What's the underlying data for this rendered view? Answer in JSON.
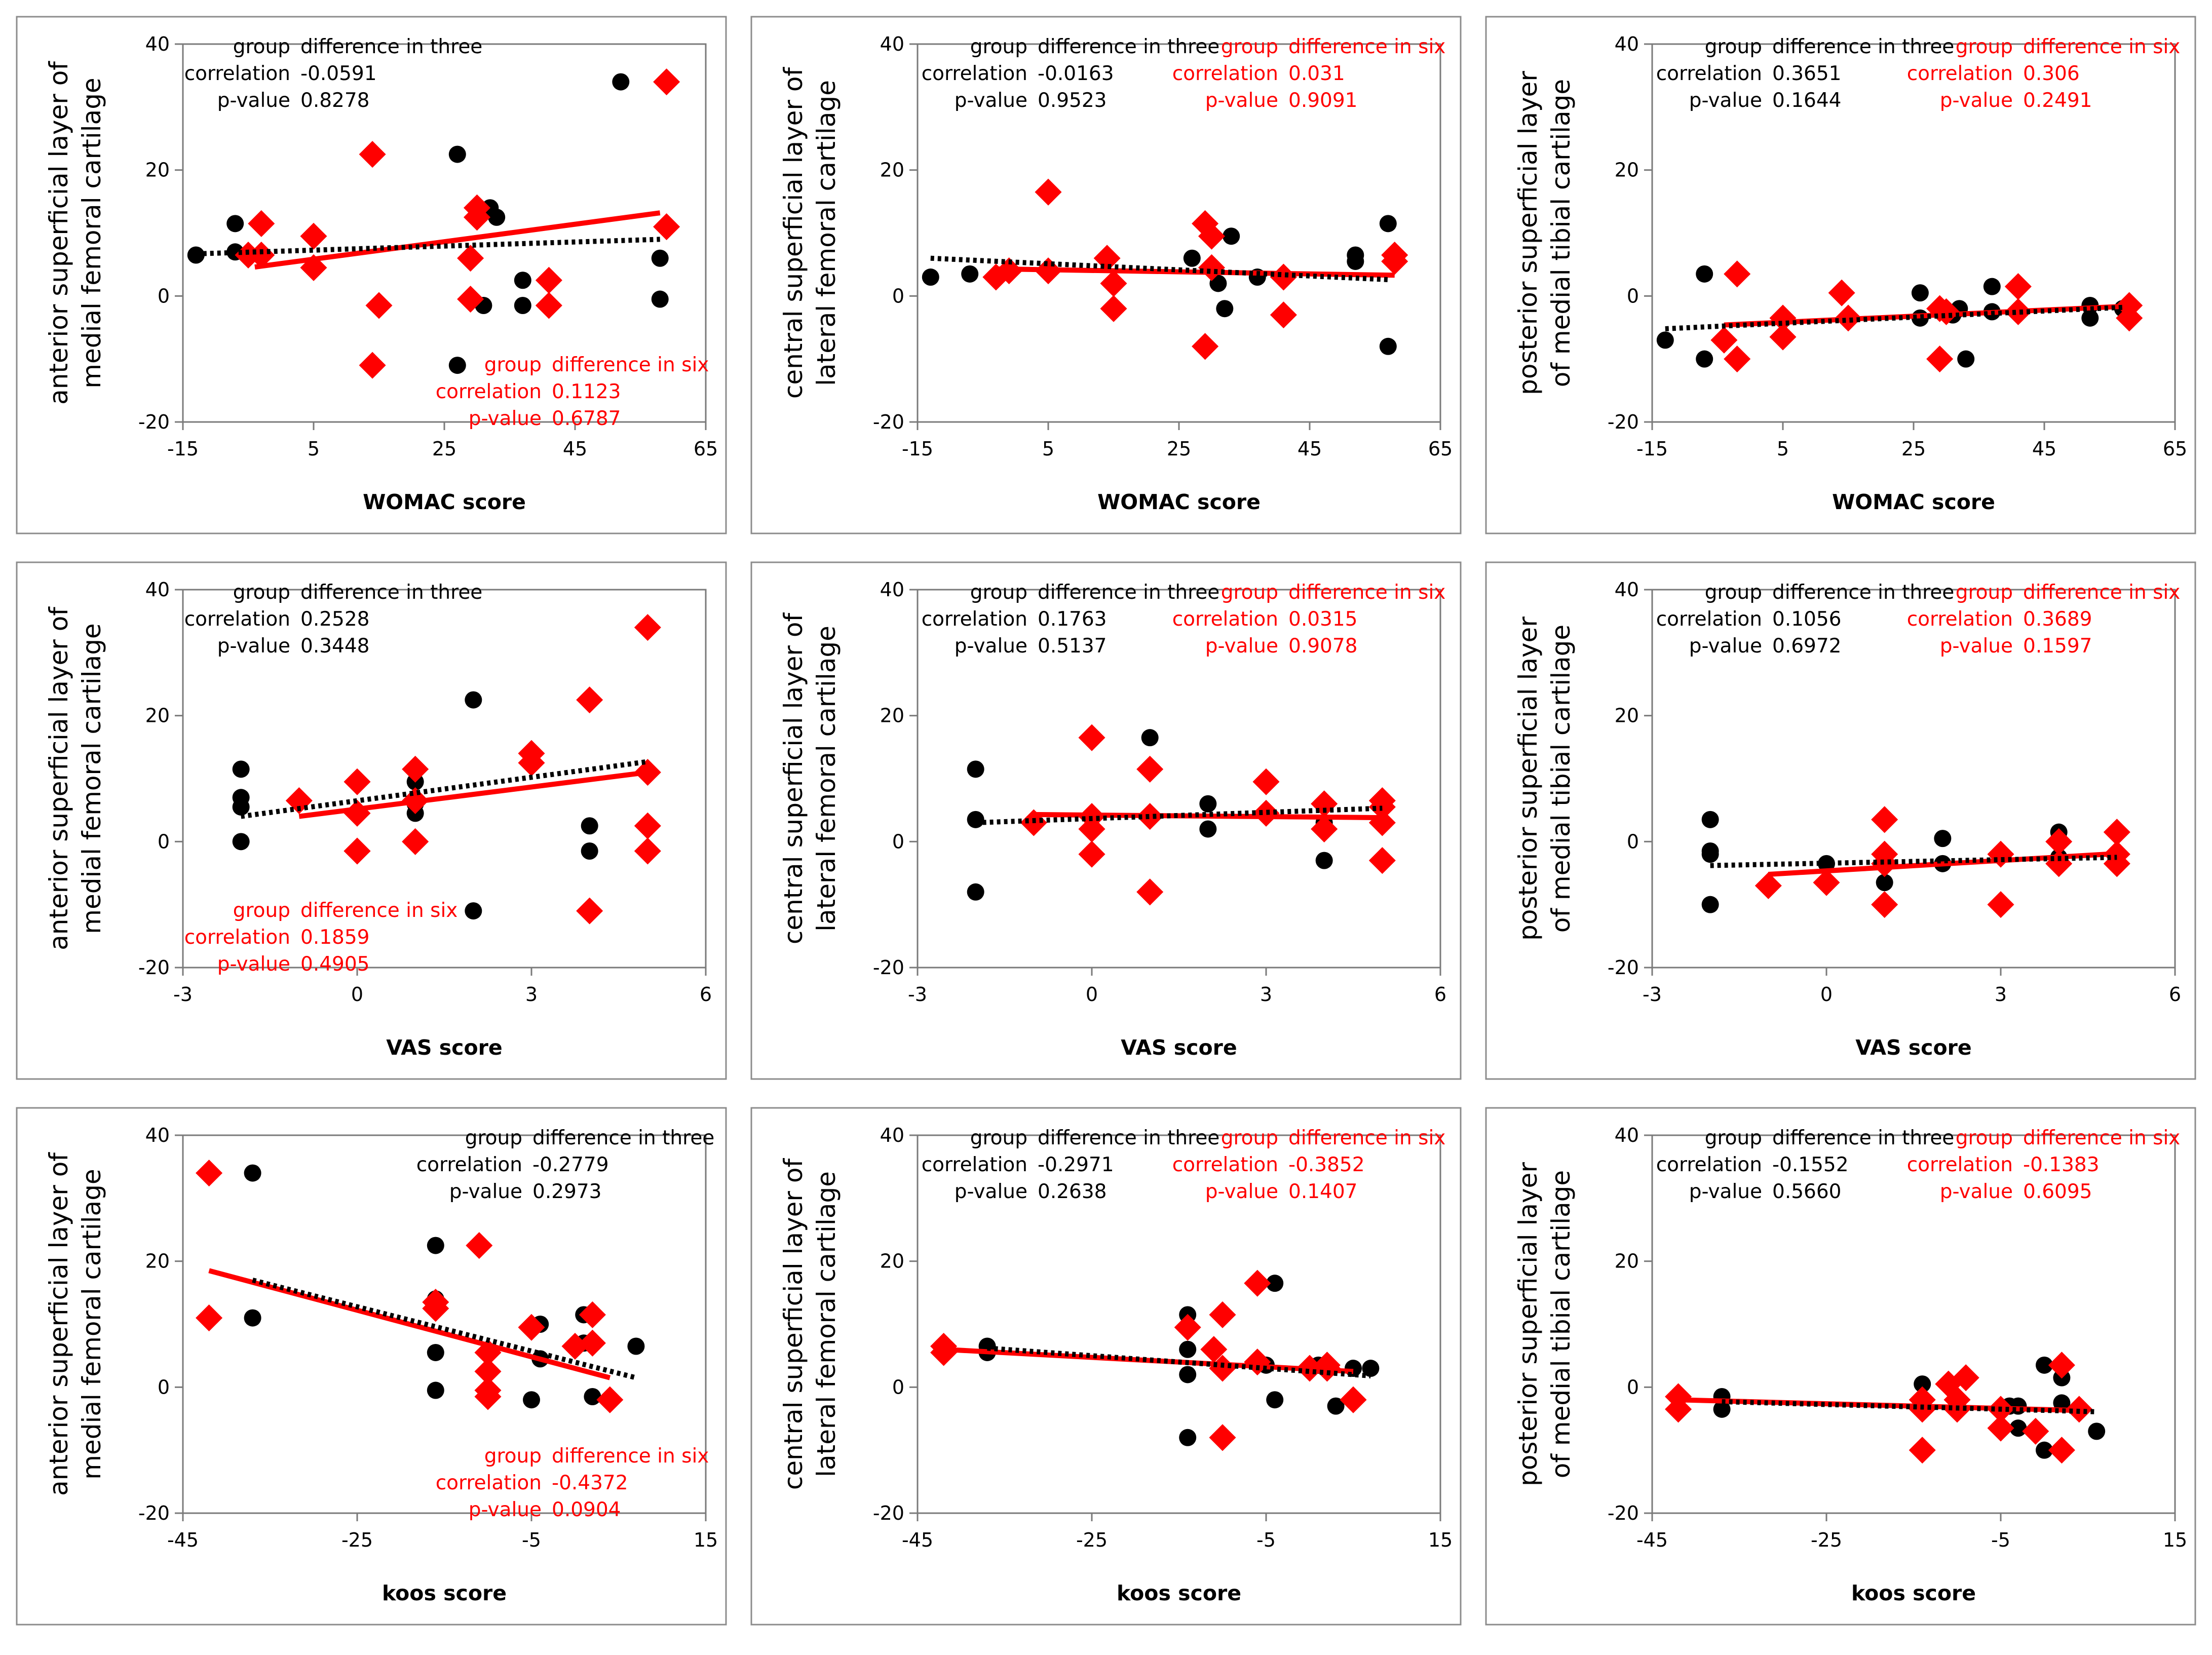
{
  "colors": {
    "three": "#000000",
    "six": "#ff0000",
    "frame": "#8c8c8c",
    "axis": "#7a7a7a"
  },
  "chart_data": [
    {
      "type": "scatter",
      "xlabel": "WOMAC score",
      "ylabel": [
        "anterior superficial layer of",
        "medial femoral cartilage"
      ],
      "xticks": [
        "-15",
        "5",
        "25",
        "45",
        "65"
      ],
      "xlim": [
        -15,
        65
      ],
      "yticks": [
        "40",
        "20",
        "0",
        "-20"
      ],
      "ylim": [
        -20,
        40
      ],
      "legend_three": {
        "group": "group",
        "name": "difference in three",
        "corr_label": "correlation",
        "corr": "-0.0591",
        "p_label": "p-value",
        "p": "0.8278"
      },
      "legend_six": {
        "group": "group",
        "name": "difference in six",
        "corr_label": "correlation",
        "corr": "0.1123",
        "p_label": "p-value",
        "p": "0.6787"
      },
      "three": {
        "x": [
          -13,
          -7,
          -7,
          5,
          5,
          27,
          31,
          32,
          33,
          37,
          37,
          52,
          58,
          58,
          27
        ],
        "y": [
          6.5,
          11.5,
          7,
          9.5,
          4.5,
          22.5,
          -1.5,
          14,
          12.5,
          2.5,
          -1.5,
          34,
          6,
          -0.5,
          -11
        ]
      },
      "six": {
        "x": [
          -5,
          -3,
          -3,
          5,
          5,
          14,
          15,
          14,
          29,
          30,
          30,
          29,
          41,
          41,
          59,
          59
        ],
        "y": [
          6.5,
          6.5,
          11.5,
          9.5,
          4.5,
          22.5,
          -1.5,
          -11,
          6,
          14,
          12.5,
          -0.5,
          2.5,
          -1.5,
          34,
          11
        ]
      },
      "fit_three": [
        [
          -13,
          6.7
        ],
        [
          58,
          9
        ]
      ],
      "fit_six": [
        [
          -4,
          4.6
        ],
        [
          58,
          13.2
        ]
      ]
    },
    {
      "type": "scatter",
      "xlabel": "WOMAC score",
      "ylabel": [
        "central superficial layer of",
        "lateral femoral cartilage"
      ],
      "xticks": [
        "-15",
        "5",
        "25",
        "45",
        "65"
      ],
      "xlim": [
        -15,
        65
      ],
      "yticks": [
        "40",
        "20",
        "0",
        "-20"
      ],
      "ylim": [
        -20,
        40
      ],
      "legend_three": {
        "group": "group",
        "name": "difference in three",
        "corr_label": "correlation",
        "corr": "-0.0163",
        "p_label": "p-value",
        "p": "0.9523"
      },
      "legend_six": {
        "group": "group",
        "name": "difference in six",
        "corr_label": "correlation",
        "corr": "0.031",
        "p_label": "p-value",
        "p": "0.9091"
      },
      "three": {
        "x": [
          -13,
          -7,
          5,
          27,
          31,
          32,
          33,
          37,
          52,
          52,
          57,
          57
        ],
        "y": [
          3,
          3.5,
          16.5,
          6,
          2,
          -2,
          9.5,
          3,
          5.5,
          6.5,
          11.5,
          -8
        ]
      },
      "six": {
        "x": [
          -3,
          -1,
          5,
          5,
          14,
          15,
          15,
          29,
          30,
          30,
          29,
          41,
          41,
          58,
          58
        ],
        "y": [
          3,
          4,
          16.5,
          4,
          6,
          2,
          -2,
          11.5,
          9.5,
          4.5,
          -8,
          3,
          -3,
          6.5,
          5.5
        ]
      },
      "fit_three": [
        [
          -13,
          6
        ],
        [
          57,
          2.6
        ]
      ],
      "fit_six": [
        [
          -3,
          4.3
        ],
        [
          58,
          3.3
        ]
      ]
    },
    {
      "type": "scatter",
      "xlabel": "WOMAC score",
      "ylabel": [
        "posterior superficial layer",
        "of medial tibial cartilage"
      ],
      "xticks": [
        "-15",
        "5",
        "25",
        "45",
        "65"
      ],
      "xlim": [
        -15,
        65
      ],
      "yticks": [
        "40",
        "20",
        "0",
        "-20"
      ],
      "ylim": [
        -20,
        40
      ],
      "legend_three": {
        "group": "group",
        "name": "difference in three",
        "corr_label": "correlation",
        "corr": "0.3651",
        "p_label": "p-value",
        "p": "0.1644"
      },
      "legend_six": {
        "group": "group",
        "name": "difference in six",
        "corr_label": "correlation",
        "corr": "0.306",
        "p_label": "p-value",
        "p": "0.2491"
      },
      "three": {
        "x": [
          -13,
          -7,
          -7,
          5,
          5,
          26,
          26,
          29,
          31,
          32,
          33,
          37,
          37,
          52,
          52,
          57
        ],
        "y": [
          -7,
          3.5,
          -10,
          -3.5,
          -6.5,
          0.5,
          -3.5,
          -2,
          -3,
          -2,
          -10,
          1.5,
          -2.5,
          -1.5,
          -3.5,
          -2
        ]
      },
      "six": {
        "x": [
          -4,
          -2,
          -2,
          5,
          5,
          14,
          15,
          29,
          29,
          30,
          41,
          41,
          58,
          58
        ],
        "y": [
          -7,
          3.5,
          -10,
          -3.5,
          -6.5,
          0.5,
          -3.5,
          -2,
          -10,
          -2.5,
          1.5,
          -2.5,
          -1.5,
          -3.5
        ]
      },
      "fit_three": [
        [
          -13,
          -5.2
        ],
        [
          57,
          -1.8
        ]
      ],
      "fit_six": [
        [
          -4,
          -4.6
        ],
        [
          58,
          -1.6
        ]
      ]
    },
    {
      "type": "scatter",
      "xlabel": "VAS score",
      "ylabel": [
        "anterior superficial layer of",
        "medial femoral cartilage"
      ],
      "xticks": [
        "-3",
        "0",
        "3",
        "6"
      ],
      "xlim": [
        -3,
        6
      ],
      "yticks": [
        "40",
        "20",
        "0",
        "-20"
      ],
      "ylim": [
        -20,
        40
      ],
      "legend_three": {
        "group": "group",
        "name": "difference in three",
        "corr_label": "correlation",
        "corr": "0.2528",
        "p_label": "p-value",
        "p": "0.3448"
      },
      "legend_six": {
        "group": "group",
        "name": "difference in six",
        "corr_label": "correlation",
        "corr": "0.1859",
        "p_label": "p-value",
        "p": "0.4905"
      },
      "three": {
        "x": [
          -2,
          -2,
          -2,
          -2,
          1,
          1,
          1,
          2,
          2,
          3,
          3,
          4,
          4,
          5
        ],
        "y": [
          11.5,
          7,
          5.5,
          0,
          9.5,
          6,
          4.5,
          22.5,
          -11,
          14,
          13,
          2.5,
          -1.5,
          34
        ]
      },
      "six": {
        "x": [
          -1,
          0,
          0,
          0,
          0,
          1,
          1,
          1,
          3,
          3,
          4,
          4,
          5,
          5,
          5,
          5
        ],
        "y": [
          6.5,
          9.5,
          4.5,
          -1.5,
          -1.5,
          11.5,
          6.5,
          0,
          14,
          12.5,
          22.5,
          -11,
          34,
          11,
          2.5,
          -1.5
        ]
      },
      "fit_three": [
        [
          -2,
          4
        ],
        [
          5,
          12.7
        ]
      ],
      "fit_six": [
        [
          -1,
          4
        ],
        [
          5,
          11
        ]
      ]
    },
    {
      "type": "scatter",
      "xlabel": "VAS score",
      "ylabel": [
        "central superficial layer of",
        "lateral femoral cartilage"
      ],
      "xticks": [
        "-3",
        "0",
        "3",
        "6"
      ],
      "xlim": [
        -3,
        6
      ],
      "yticks": [
        "40",
        "20",
        "0",
        "-20"
      ],
      "ylim": [
        -20,
        40
      ],
      "legend_three": {
        "group": "group",
        "name": "difference in three",
        "corr_label": "correlation",
        "corr": "0.1763",
        "p_label": "p-value",
        "p": "0.5137"
      },
      "legend_six": {
        "group": "group",
        "name": "difference in six",
        "corr_label": "correlation",
        "corr": "0.0315",
        "p_label": "p-value",
        "p": "0.9078"
      },
      "three": {
        "x": [
          -2,
          -2,
          -2,
          0,
          1,
          1,
          2,
          2,
          3,
          3,
          4,
          4,
          5
        ],
        "y": [
          11.5,
          3.5,
          -8,
          2,
          16.5,
          4,
          6,
          2,
          9.5,
          4.5,
          3,
          -3,
          6.5
        ]
      },
      "six": {
        "x": [
          -1,
          0,
          0,
          0,
          0,
          1,
          1,
          1,
          3,
          3,
          4,
          4,
          5,
          5,
          5,
          5
        ],
        "y": [
          3,
          16.5,
          4,
          2,
          -2,
          11.5,
          4,
          -8,
          9.5,
          4.5,
          6,
          2,
          6.5,
          5.5,
          3,
          -3
        ]
      },
      "fit_three": [
        [
          -2,
          3
        ],
        [
          5,
          5.3
        ]
      ],
      "fit_six": [
        [
          -1,
          4.3
        ],
        [
          5,
          3.8
        ]
      ]
    },
    {
      "type": "scatter",
      "xlabel": "VAS score",
      "ylabel": [
        "posterior superficial layer",
        "of medial tibial cartilage"
      ],
      "xticks": [
        "-3",
        "0",
        "3",
        "6"
      ],
      "xlim": [
        -3,
        6
      ],
      "yticks": [
        "40",
        "20",
        "0",
        "-20"
      ],
      "ylim": [
        -20,
        40
      ],
      "legend_three": {
        "group": "group",
        "name": "difference in three",
        "corr_label": "correlation",
        "corr": "0.1056",
        "p_label": "p-value",
        "p": "0.6972"
      },
      "legend_six": {
        "group": "group",
        "name": "difference in six",
        "corr_label": "correlation",
        "corr": "0.3689",
        "p_label": "p-value",
        "p": "0.1597"
      },
      "three": {
        "x": [
          -2,
          -2,
          -2,
          -2,
          0,
          1,
          1,
          2,
          2,
          3,
          4,
          4,
          5
        ],
        "y": [
          3.5,
          -1.5,
          -2,
          -10,
          -3.5,
          -6.5,
          -2.5,
          0.5,
          -3.5,
          -2,
          1.5,
          -2.5,
          -2.5
        ]
      },
      "six": {
        "x": [
          -1,
          0,
          1,
          1,
          1,
          1,
          3,
          3,
          4,
          4,
          5,
          5,
          5
        ],
        "y": [
          -7,
          -6.5,
          3.5,
          -2,
          -3.5,
          -10,
          -2,
          -10,
          0,
          -3.5,
          1.5,
          -2,
          -3.5
        ]
      },
      "fit_three": [
        [
          -2,
          -3.8
        ],
        [
          5,
          -2.5
        ]
      ],
      "fit_six": [
        [
          -1,
          -5.2
        ],
        [
          5,
          -1.9
        ]
      ]
    },
    {
      "type": "scatter",
      "xlabel": "koos score",
      "ylabel": [
        "anterior superficial layer of",
        "medial femoral cartilage"
      ],
      "xticks": [
        "-45",
        "-25",
        "-5",
        "15"
      ],
      "xlim": [
        -45,
        15
      ],
      "yticks": [
        "40",
        "20",
        "0",
        "-20"
      ],
      "ylim": [
        -20,
        40
      ],
      "legend_three": {
        "group": "group",
        "name": "difference in three",
        "corr_label": "correlation",
        "corr": "-0.2779",
        "p_label": "p-value",
        "p": "0.2973"
      },
      "legend_six": {
        "group": "group",
        "name": "difference in six",
        "corr_label": "correlation",
        "corr": "-0.4372",
        "p_label": "p-value",
        "p": "0.0904"
      },
      "three": {
        "x": [
          -37,
          -37,
          -16,
          -16,
          -16,
          -16,
          -4,
          -4,
          -5,
          1,
          1,
          2,
          7
        ],
        "y": [
          34,
          11,
          22.5,
          14,
          5.5,
          -0.5,
          10,
          4.5,
          -2,
          11.5,
          7,
          -1.5,
          6.5
        ]
      },
      "six": {
        "x": [
          -42,
          -42,
          -16,
          -16,
          -11,
          -10,
          -10,
          -10,
          -10,
          -5,
          0,
          2,
          2,
          4
        ],
        "y": [
          34,
          11,
          13.5,
          12.5,
          22.5,
          5.5,
          2.5,
          -0.5,
          -1.5,
          9.5,
          6.5,
          11.5,
          7,
          -2
        ]
      },
      "fit_three": [
        [
          -37,
          17
        ],
        [
          7,
          1.5
        ]
      ],
      "fit_six": [
        [
          -42,
          18.5
        ],
        [
          4,
          1.5
        ]
      ]
    },
    {
      "type": "scatter",
      "xlabel": "koos score",
      "ylabel": [
        "central superficial layer of",
        "lateral femoral cartilage"
      ],
      "xticks": [
        "-45",
        "-25",
        "-5",
        "15"
      ],
      "xlim": [
        -45,
        15
      ],
      "yticks": [
        "40",
        "20",
        "0",
        "-20"
      ],
      "ylim": [
        -20,
        40
      ],
      "legend_three": {
        "group": "group",
        "name": "difference in three",
        "corr_label": "correlation",
        "corr": "-0.2971",
        "p_label": "p-value",
        "p": "0.2638"
      },
      "legend_six": {
        "group": "group",
        "name": "difference in six",
        "corr_label": "correlation",
        "corr": "-0.3852",
        "p_label": "p-value",
        "p": "0.1407"
      },
      "three": {
        "x": [
          -37,
          -37,
          -14,
          -14,
          -14,
          -14,
          -5,
          -4,
          -4,
          1,
          3,
          5,
          7
        ],
        "y": [
          6.5,
          5.5,
          11.5,
          6,
          2,
          -8,
          3.5,
          16.5,
          -2,
          3.5,
          -3,
          3,
          3
        ]
      },
      "six": {
        "x": [
          -42,
          -42,
          -14,
          -11,
          -10,
          -10,
          -10,
          -6,
          -6,
          0,
          2,
          2,
          5
        ],
        "y": [
          6.5,
          5.5,
          9.5,
          6,
          11.5,
          3,
          -8,
          16.5,
          4,
          3,
          3,
          3.5,
          -2
        ]
      },
      "fit_three": [
        [
          -37,
          6.2
        ],
        [
          7,
          1.8
        ]
      ],
      "fit_six": [
        [
          -42,
          6
        ],
        [
          5,
          2.5
        ]
      ]
    },
    {
      "type": "scatter",
      "xlabel": "koos score",
      "ylabel": [
        "posterior superficial layer",
        "of medial tibial cartilage"
      ],
      "xticks": [
        "-45",
        "-25",
        "-5",
        "15"
      ],
      "xlim": [
        -45,
        15
      ],
      "yticks": [
        "40",
        "20",
        "0",
        "-20"
      ],
      "ylim": [
        -20,
        40
      ],
      "legend_three": {
        "group": "group",
        "name": "difference in three",
        "corr_label": "correlation",
        "corr": "-0.1552",
        "p_label": "p-value",
        "p": "0.5660"
      },
      "legend_six": {
        "group": "group",
        "name": "difference in six",
        "corr_label": "correlation",
        "corr": "-0.1383",
        "p_label": "p-value",
        "p": "0.6095"
      },
      "three": {
        "x": [
          -37,
          -37,
          -14,
          -14,
          -14,
          -4,
          -3,
          -3,
          0,
          0,
          2,
          2,
          6
        ],
        "y": [
          -1.5,
          -3.5,
          0.5,
          -3.5,
          -3,
          -3,
          -3,
          -6.5,
          3.5,
          -10,
          1.5,
          -2.5,
          -7
        ]
      },
      "six": {
        "x": [
          -42,
          -42,
          -14,
          -14,
          -14,
          -11,
          -10,
          -10,
          -9,
          -5,
          -5,
          -1,
          2,
          2,
          4
        ],
        "y": [
          -1.5,
          -3.5,
          -2,
          -3.5,
          -10,
          0.5,
          -3.5,
          -2,
          1.5,
          -3.5,
          -6.5,
          -7,
          3.5,
          -10,
          -3.5
        ]
      },
      "fit_three": [
        [
          -37,
          -2.3
        ],
        [
          6,
          -3.9
        ]
      ],
      "fit_six": [
        [
          -42,
          -2
        ],
        [
          4,
          -3.7
        ]
      ]
    }
  ]
}
